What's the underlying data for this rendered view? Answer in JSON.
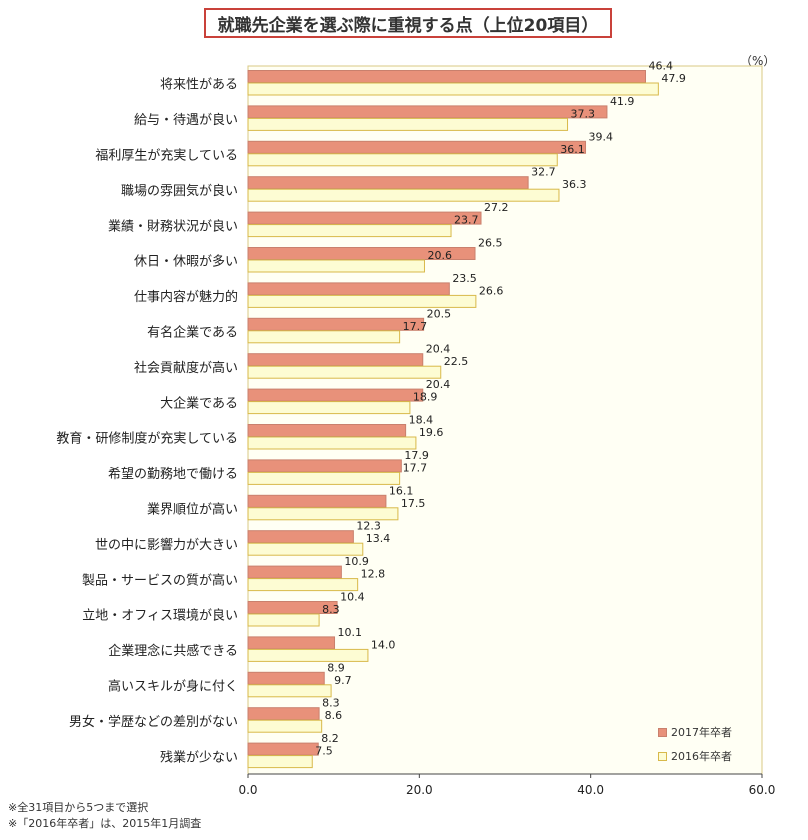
{
  "chart_data": {
    "type": "bar",
    "orientation": "horizontal",
    "title": "就職先企業を選ぶ際に重視する点（上位20項目）",
    "unit": "（%）",
    "categories": [
      "将来性がある",
      "給与・待遇が良い",
      "福利厚生が充実している",
      "職場の雰囲気が良い",
      "業績・財務状況が良い",
      "休日・休暇が多い",
      "仕事内容が魅力的",
      "有名企業である",
      "社会貢献度が高い",
      "大企業である",
      "教育・研修制度が充実している",
      "希望の勤務地で働ける",
      "業界順位が高い",
      "世の中に影響力が大きい",
      "製品・サービスの質が高い",
      "立地・オフィス環境が良い",
      "企業理念に共感できる",
      "高いスキルが身に付く",
      "男女・学歴などの差別がない",
      "残業が少ない"
    ],
    "series": [
      {
        "name": "2017年卒者",
        "color": "#e8917a",
        "values": [
          46.4,
          41.9,
          39.4,
          32.7,
          27.2,
          26.5,
          23.5,
          20.5,
          20.4,
          20.4,
          18.4,
          17.9,
          16.1,
          12.3,
          10.9,
          10.4,
          10.1,
          8.9,
          8.3,
          8.2
        ]
      },
      {
        "name": "2016年卒者",
        "color": "#fdfcd3",
        "values": [
          47.9,
          37.3,
          36.1,
          36.3,
          23.7,
          20.6,
          26.6,
          17.7,
          22.5,
          18.9,
          19.6,
          17.7,
          17.5,
          13.4,
          12.8,
          8.3,
          14.0,
          9.7,
          8.6,
          7.5
        ]
      }
    ],
    "xlim": [
      0,
      60
    ],
    "xticks": [
      "0.0",
      "20.0",
      "40.0",
      "60.0"
    ],
    "grid": false,
    "legend_position": "bottom-right"
  },
  "notes": [
    "※全31項目から5つまで選択",
    "※「2016年卒者」は、2015年1月調査"
  ]
}
